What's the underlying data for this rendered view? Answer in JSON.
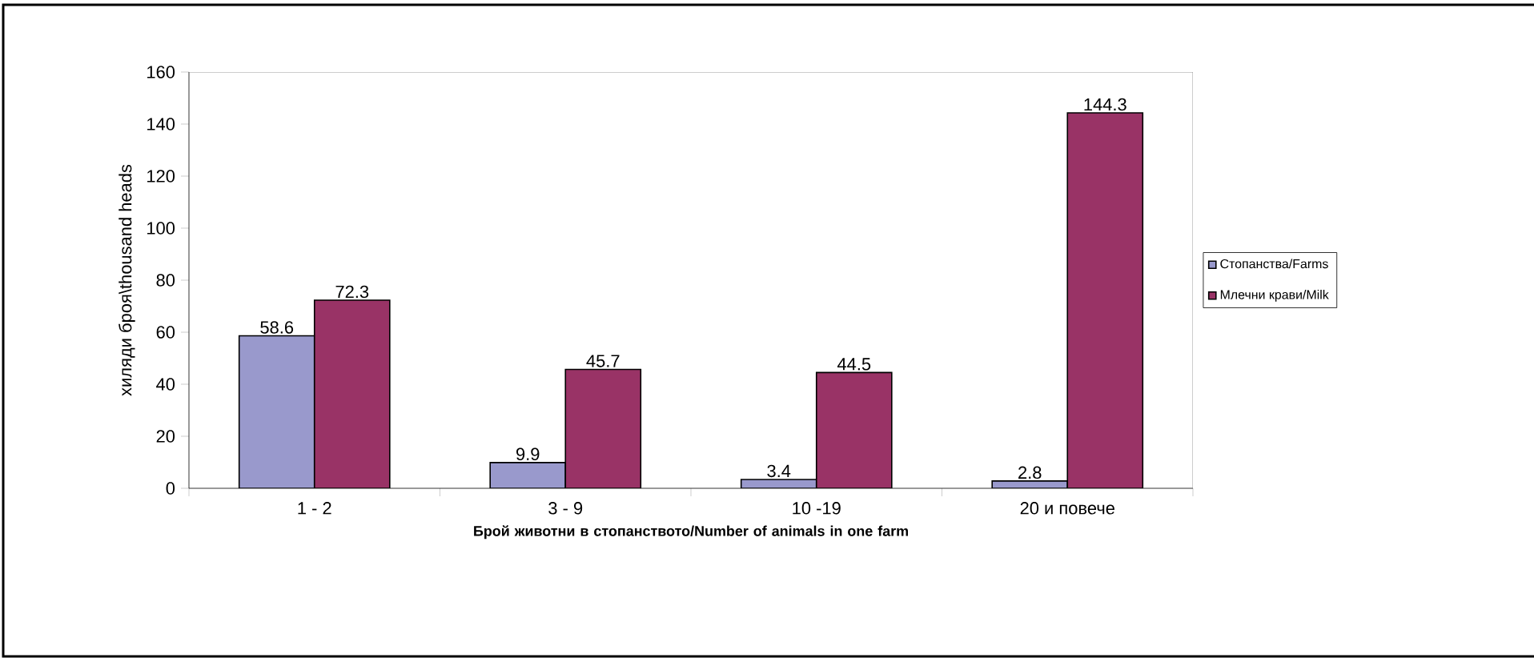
{
  "chart_data": {
    "type": "bar",
    "xlabel": "Брой животни в стопанството/Number of animals in one farm",
    "ylabel": "хиляди броя\\thousand heads",
    "categories": [
      "1 - 2",
      "3 - 9",
      "10 -19",
      "20 и повече"
    ],
    "series": [
      {
        "name": "Стопанства/Farms",
        "color": "#9999cc",
        "values": [
          58.6,
          9.9,
          3.4,
          2.8
        ]
      },
      {
        "name": "Млечни крави/Milk",
        "color": "#993366",
        "values": [
          72.3,
          45.7,
          44.5,
          144.3
        ]
      }
    ],
    "ylim": [
      0,
      160
    ],
    "yticks": [
      0,
      20,
      40,
      60,
      80,
      100,
      120,
      140,
      160
    ],
    "data_labels": true,
    "grid": false,
    "legend": "right"
  }
}
